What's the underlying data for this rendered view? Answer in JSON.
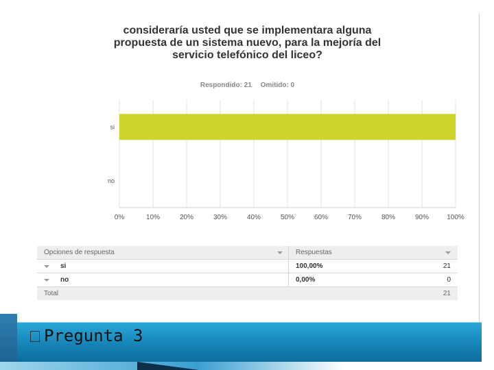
{
  "question": {
    "title": "consideraría usted que se implementara alguna propuesta de un sistema nuevo, para la mejoría del servicio telefónico del liceo?",
    "answered_label": "Respondido: 21",
    "skipped_label": "Omitido: 0"
  },
  "chart_data": {
    "type": "bar",
    "orientation": "horizontal",
    "categories": [
      "si",
      "no"
    ],
    "values": [
      100,
      0
    ],
    "unit": "%",
    "xlim": [
      0,
      100
    ],
    "x_ticks": [
      "0%",
      "10%",
      "20%",
      "30%",
      "40%",
      "50%",
      "60%",
      "70%",
      "80%",
      "90%",
      "100%"
    ],
    "bar_color": "#cdd52c",
    "grid": true
  },
  "table": {
    "headers": [
      "Opciones de respuesta",
      "Respuestas"
    ],
    "rows": [
      {
        "option": "si",
        "percent": "100,00%",
        "count": "21"
      },
      {
        "option": "no",
        "percent": "0,00%",
        "count": "0"
      }
    ],
    "total_label": "Total",
    "total_count": "21"
  },
  "slide": {
    "title": "Pregunta 3"
  }
}
